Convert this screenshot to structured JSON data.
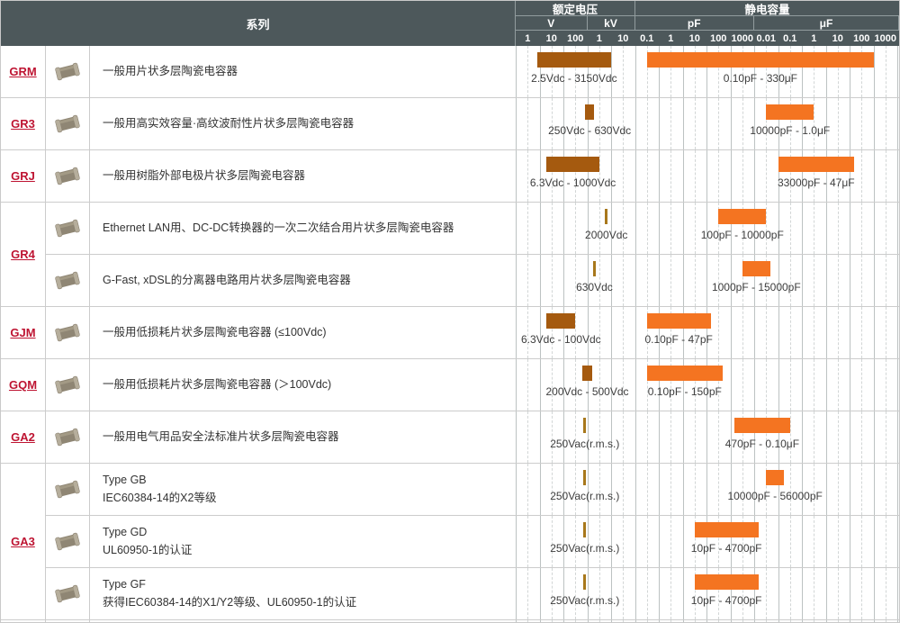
{
  "header": {
    "series_col": "系列",
    "voltage_group": "额定电压",
    "capacitance_group": "静电容量",
    "voltage_units": [
      {
        "label": "V",
        "ticks": [
          "1",
          "10",
          "100"
        ]
      },
      {
        "label": "kV",
        "ticks": [
          "1",
          "10"
        ]
      }
    ],
    "capacitance_units": [
      {
        "label": "pF",
        "ticks": [
          "0.1",
          "1",
          "10",
          "100",
          "1000"
        ]
      },
      {
        "label": "μF",
        "ticks": [
          "0.01",
          "0.1",
          "1",
          "10",
          "100",
          "1000"
        ]
      }
    ]
  },
  "colors": {
    "header_bg": "#4d585b",
    "voltage_bar": "#a55a0f",
    "capacitance_bar": "#f47421",
    "voltage_single_mark": "#a8781c",
    "series_link": "#be1432",
    "grid_solid": "#bcc2c2",
    "grid_dashed": "#d2d6d6",
    "row_border": "#cccccc"
  },
  "icons": {
    "series_image": "mlcc-chip-photo"
  },
  "chart_data": {
    "type": "range-bar",
    "x_scale": "log",
    "axes": {
      "voltage": {
        "units": [
          "V",
          "kV"
        ],
        "min_v": 1,
        "max_v": 10000
      },
      "capacitance": {
        "units": [
          "pF",
          "μF"
        ],
        "min_pf": 0.1,
        "max_pf": 1000000000
      }
    },
    "rows": [
      {
        "series": "GRM",
        "description": "一般用片状多层陶瓷电容器",
        "voltage_v": [
          2.5,
          3150
        ],
        "voltage_label": "2.5Vdc - 3150Vdc",
        "capacitance_pf": [
          0.1,
          330000000
        ],
        "capacitance_label": "0.10pF - 330μF"
      },
      {
        "series": "GR3",
        "description": "一般用高实效容量·高纹波耐性片状多层陶瓷电容器",
        "voltage_v": [
          250,
          630
        ],
        "voltage_label": "250Vdc - 630Vdc",
        "capacitance_pf": [
          10000,
          1000000
        ],
        "capacitance_label": "10000pF - 1.0μF"
      },
      {
        "series": "GRJ",
        "description": "一般用树脂外部电极片状多层陶瓷电容器",
        "voltage_v": [
          6.3,
          1000
        ],
        "voltage_label": "6.3Vdc - 1000Vdc",
        "capacitance_pf": [
          33000,
          47000000
        ],
        "capacitance_label": "33000pF - 47μF"
      },
      {
        "series": "GR4",
        "description": "Ethernet LAN用、DC-DC转换器的一次二次结合用片状多层陶瓷电容器",
        "voltage_v": [
          2000
        ],
        "voltage_label": "2000Vdc",
        "capacitance_pf": [
          100,
          10000
        ],
        "capacitance_label": "100pF - 10000pF"
      },
      {
        "series": "GR4",
        "description": "G-Fast, xDSL的分离器电路用片状多层陶瓷电容器",
        "voltage_v": [
          630
        ],
        "voltage_label": "630Vdc",
        "capacitance_pf": [
          1000,
          15000
        ],
        "capacitance_label": "1000pF - 15000pF"
      },
      {
        "series": "GJM",
        "description": "一般用低损耗片状多层陶瓷电容器 (≤100Vdc)",
        "voltage_v": [
          6.3,
          100
        ],
        "voltage_label": "6.3Vdc - 100Vdc",
        "capacitance_pf": [
          0.1,
          47
        ],
        "capacitance_label": "0.10pF - 47pF"
      },
      {
        "series": "GQM",
        "description": "一般用低损耗片状多层陶瓷电容器 (＞100Vdc)",
        "voltage_v": [
          200,
          500
        ],
        "voltage_label": "200Vdc - 500Vdc",
        "capacitance_pf": [
          0.1,
          150
        ],
        "capacitance_label": "0.10pF - 150pF"
      },
      {
        "series": "GA2",
        "description": "一般用电气用品安全法标准片状多层陶瓷电容器",
        "voltage_v": [
          250
        ],
        "voltage_label": "250Vac(r.m.s.)",
        "capacitance_pf": [
          470,
          100000
        ],
        "capacitance_label": "470pF - 0.10μF"
      },
      {
        "series": "GA3",
        "description": "Type GB",
        "description_line2": "IEC60384-14的X2等级",
        "voltage_v": [
          250
        ],
        "voltage_label": "250Vac(r.m.s.)",
        "capacitance_pf": [
          10000,
          56000
        ],
        "capacitance_label": "10000pF - 56000pF"
      },
      {
        "series": "GA3",
        "description": "Type GD",
        "description_line2": "UL60950-1的认证",
        "voltage_v": [
          250
        ],
        "voltage_label": "250Vac(r.m.s.)",
        "capacitance_pf": [
          10,
          4700
        ],
        "capacitance_label": "10pF - 4700pF"
      },
      {
        "series": "GA3",
        "description": "Type GF",
        "description_line2": "获得IEC60384-14的X1/Y2等级、UL60950-1的认证",
        "voltage_v": [
          250
        ],
        "voltage_label": "250Vac(r.m.s.)",
        "capacitance_pf": [
          10,
          4700
        ],
        "capacitance_label": "10pF - 4700pF"
      }
    ]
  },
  "groups": [
    {
      "series": "GRM",
      "row_indexes": [
        0
      ]
    },
    {
      "series": "GR3",
      "row_indexes": [
        1
      ]
    },
    {
      "series": "GRJ",
      "row_indexes": [
        2
      ]
    },
    {
      "series": "GR4",
      "row_indexes": [
        3,
        4
      ]
    },
    {
      "series": "GJM",
      "row_indexes": [
        5
      ]
    },
    {
      "series": "GQM",
      "row_indexes": [
        6
      ]
    },
    {
      "series": "GA2",
      "row_indexes": [
        7
      ]
    },
    {
      "series": "GA3",
      "row_indexes": [
        8,
        9,
        10
      ]
    }
  ]
}
